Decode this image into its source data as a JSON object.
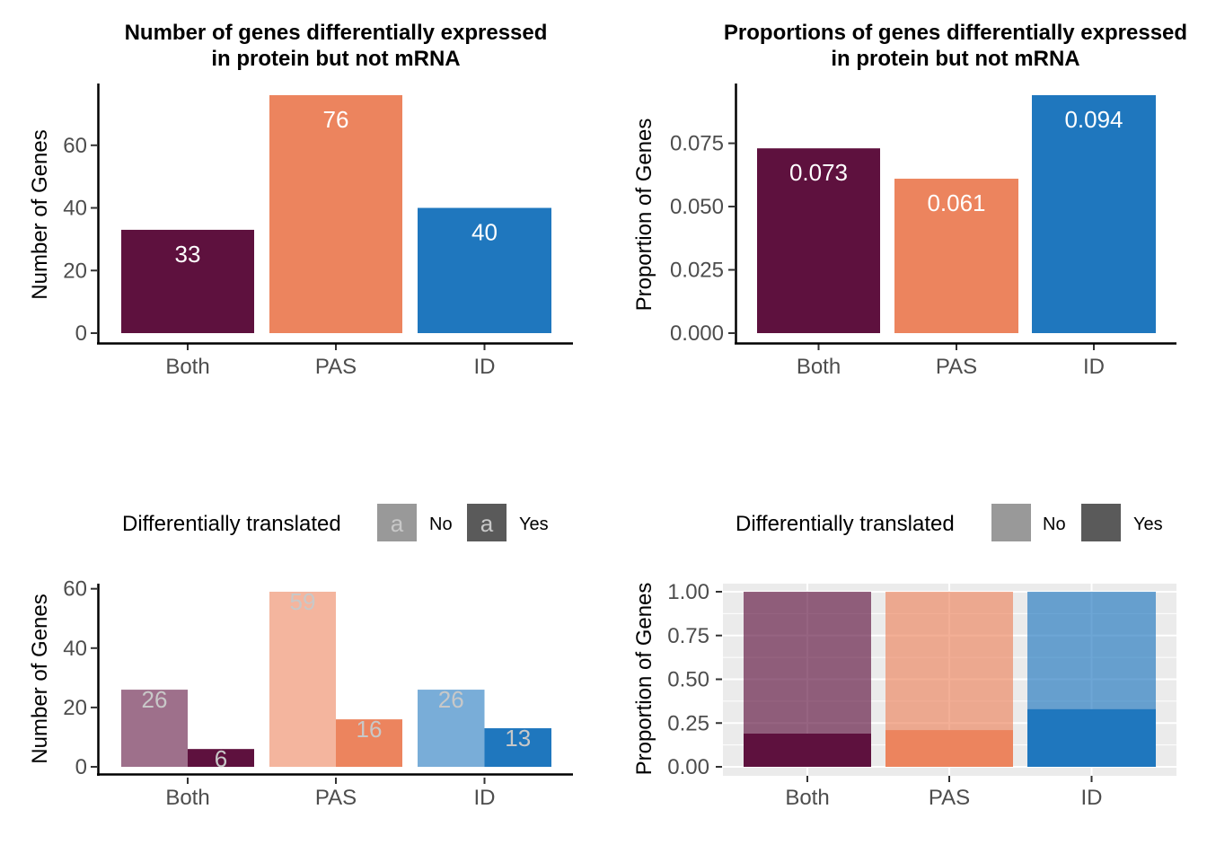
{
  "chart_data": [
    {
      "id": "counts",
      "type": "bar",
      "title_lines": [
        "Number of genes differentially expressed",
        "in protein but not mRNA"
      ],
      "xlabel": "",
      "ylabel": "Number of Genes",
      "categories": [
        "Both",
        "PAS",
        "ID"
      ],
      "values": [
        33,
        76,
        40
      ],
      "value_labels": [
        "33",
        "76",
        "40"
      ],
      "ylim": [
        0,
        76
      ],
      "yticks": [
        0,
        20,
        40,
        60
      ],
      "ytick_labels": [
        "0",
        "20",
        "40",
        "60"
      ],
      "colors": [
        "#5e113e",
        "#ec845e",
        "#1f77be"
      ],
      "grid": false
    },
    {
      "id": "proportions",
      "type": "bar",
      "title_lines": [
        "Proportions of genes differentially expressed",
        "in protein but not mRNA"
      ],
      "xlabel": "",
      "ylabel": "Proportion of Genes",
      "categories": [
        "Both",
        "PAS",
        "ID"
      ],
      "values": [
        0.073,
        0.061,
        0.094
      ],
      "value_labels": [
        "0.073",
        "0.061",
        "0.094"
      ],
      "ylim": [
        0,
        0.094
      ],
      "yticks": [
        0,
        0.025,
        0.05,
        0.075
      ],
      "ytick_labels": [
        "0.000",
        "0.025",
        "0.050",
        "0.075"
      ],
      "colors": [
        "#5e113e",
        "#ec845e",
        "#1f77be"
      ],
      "grid": false
    },
    {
      "id": "counts-by-translation",
      "type": "bar",
      "title_lines": [],
      "xlabel": "",
      "ylabel": "Number of Genes",
      "categories": [
        "Both",
        "PAS",
        "ID"
      ],
      "legend": {
        "title": "Differentially translated",
        "position": "top",
        "entries": [
          {
            "label": "No",
            "key_glyph": "a",
            "color": "#999999",
            "glyph_color": "#c8c8c8"
          },
          {
            "label": "Yes",
            "key_glyph": "a",
            "color": "#5a5a5a",
            "glyph_color": "#c8c8c8"
          }
        ]
      },
      "series": [
        {
          "name": "No",
          "values": [
            26,
            59,
            26
          ],
          "value_labels": [
            "26",
            "59",
            "26"
          ]
        },
        {
          "name": "Yes",
          "values": [
            6,
            16,
            13
          ],
          "value_labels": [
            "6",
            "16",
            "13"
          ]
        }
      ],
      "ylim": [
        0,
        59
      ],
      "yticks": [
        0,
        20,
        40,
        60
      ],
      "ytick_labels": [
        "0",
        "20",
        "40",
        "60"
      ],
      "colors": [
        "#5e113e",
        "#ec845e",
        "#1f77be"
      ],
      "no_alpha": 0.6,
      "label_color": "#c8c8c8",
      "grid": false
    },
    {
      "id": "proportions-by-translation",
      "type": "bar",
      "stacked": true,
      "title_lines": [],
      "xlabel": "",
      "ylabel": "Proportion of Genes",
      "categories": [
        "Both",
        "PAS",
        "ID"
      ],
      "legend": {
        "title": "Differentially translated",
        "position": "top",
        "entries": [
          {
            "label": "No",
            "color": "#999999"
          },
          {
            "label": "Yes",
            "color": "#5a5a5a"
          }
        ]
      },
      "series": [
        {
          "name": "Yes",
          "values": [
            0.19,
            0.21,
            0.33
          ]
        },
        {
          "name": "No",
          "values": [
            0.81,
            0.79,
            0.67
          ]
        }
      ],
      "ylim": [
        0,
        1
      ],
      "yticks": [
        0,
        0.25,
        0.5,
        0.75,
        1
      ],
      "ytick_labels": [
        "0.00",
        "0.25",
        "0.50",
        "0.75",
        "1.00"
      ],
      "colors": [
        "#5e113e",
        "#ec845e",
        "#1f77be"
      ],
      "no_alpha": 0.65,
      "panel_background": "#ebebeb",
      "grid": true
    }
  ]
}
